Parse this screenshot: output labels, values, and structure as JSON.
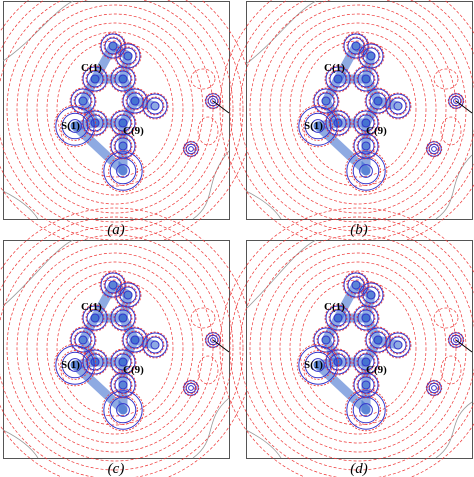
{
  "panels": [
    {
      "label": "(a)",
      "atoms": [
        "C(1)",
        "S(1)",
        "C(9)"
      ]
    },
    {
      "label": "(b)",
      "atoms": [
        "C(1)",
        "S(1)",
        "C(9)"
      ]
    },
    {
      "label": "(c)",
      "atoms": [
        "C(1)",
        "S(1)",
        "C(9)"
      ]
    },
    {
      "label": "(d)",
      "atoms": [
        "C(1)",
        "S(1)",
        "C(9)"
      ]
    }
  ]
}
